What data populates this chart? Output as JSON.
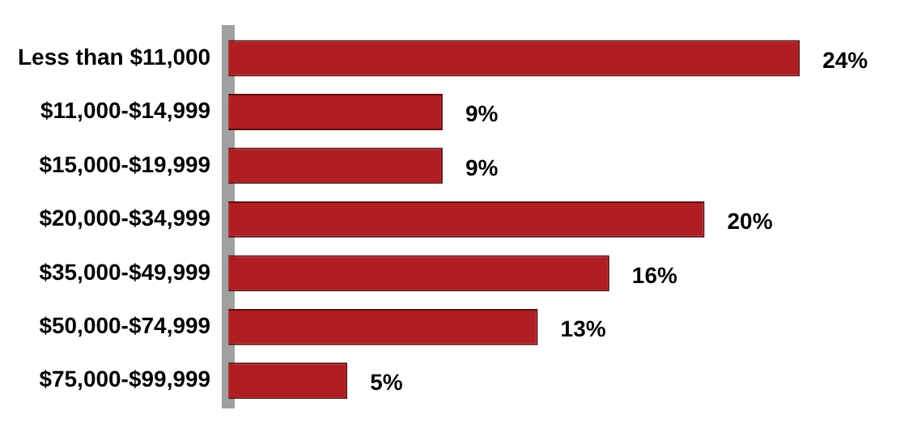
{
  "chart_data": {
    "type": "bar",
    "orientation": "horizontal",
    "categories": [
      "Less than $11,000",
      "$11,000-$14,999",
      "$15,000-$19,999",
      "$20,000-$34,999",
      "$35,000-$49,999",
      "$50,000-$74,999",
      "$75,000-$99,999"
    ],
    "values": [
      24,
      9,
      9,
      20,
      16,
      13,
      5
    ],
    "value_labels": [
      "24%",
      "9%",
      "9%",
      "20%",
      "16%",
      "13%",
      "5%"
    ],
    "color": "#b01e23"
  }
}
